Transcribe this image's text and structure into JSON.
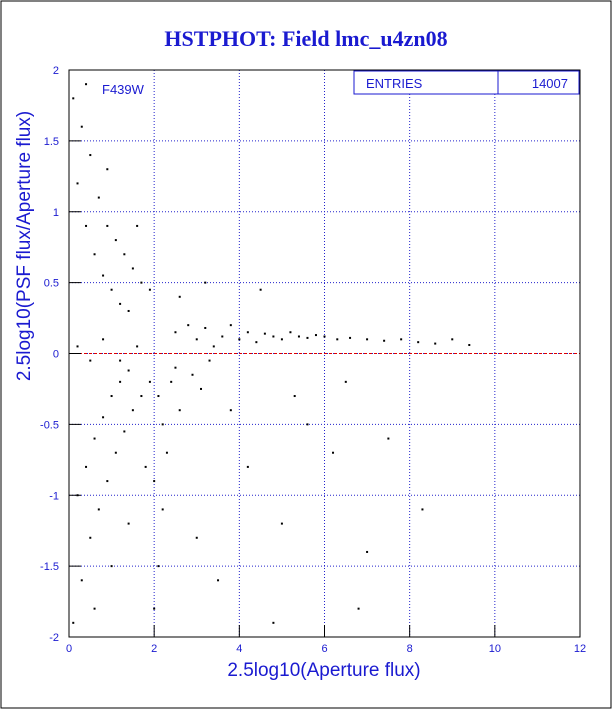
{
  "chart_data": {
    "type": "scatter",
    "title": "HSTPHOT: Field lmc_u4zn08",
    "x_label": "2.5log10(Aperture flux)",
    "y_label": "2.5log10(PSF flux/Aperture flux)",
    "annotation": "F439W",
    "stats": {
      "label": "ENTRIES",
      "value": 14007
    },
    "hline": 0,
    "hline_color": "#e00000",
    "grid": true,
    "grid_color": "#2222cc",
    "xlim": [
      0,
      12
    ],
    "ylim": [
      -2,
      2
    ],
    "xticks": [
      0,
      2,
      4,
      6,
      8,
      10,
      12
    ],
    "yticks": [
      -2,
      -1.5,
      -1,
      -0.5,
      0,
      0.5,
      1,
      1.5,
      2
    ],
    "series": [
      {
        "color": "#000000",
        "x": [
          2.5,
          2.8,
          3.0,
          3.2,
          3.4,
          3.6,
          3.8,
          4.0,
          4.2,
          4.4,
          4.6,
          4.8,
          5.0,
          5.2,
          5.4,
          5.6,
          5.8,
          6.0,
          6.3,
          6.6,
          7.0,
          7.4,
          7.8,
          8.2,
          8.6,
          9.0,
          9.4,
          2.1,
          2.2,
          2.4,
          2.6,
          2.3,
          2.5,
          2.9,
          3.3,
          3.1,
          2.0,
          2.2,
          2.1,
          2.0,
          0.1,
          0.3,
          0.5,
          0.2,
          0.7,
          0.9,
          1.1,
          1.3,
          1.5,
          1.7,
          1.9,
          0.4,
          0.6,
          0.8,
          1.0,
          1.2,
          1.4,
          0.9,
          0.4,
          1.6,
          0.1,
          0.3,
          0.5,
          0.7,
          0.9,
          1.1,
          1.3,
          1.5,
          1.7,
          1.9,
          0.2,
          0.4,
          0.6,
          0.8,
          1.0,
          1.2,
          1.4,
          0.6,
          1.0,
          1.4,
          1.8,
          0.2,
          0.5,
          0.8,
          1.2,
          1.6,
          3.5,
          4.2,
          5.0,
          5.6,
          6.2,
          7.0,
          7.5,
          8.3,
          4.8,
          6.8,
          3.0,
          5.3,
          3.8,
          4.5,
          3.2,
          2.6,
          6.5
        ],
        "values": [
          0.15,
          0.2,
          0.1,
          0.18,
          0.05,
          0.12,
          0.2,
          0.1,
          0.15,
          0.08,
          0.14,
          0.12,
          0.1,
          0.15,
          0.12,
          0.11,
          0.13,
          0.12,
          0.1,
          0.11,
          0.1,
          0.09,
          0.1,
          0.08,
          0.07,
          0.1,
          0.06,
          -0.3,
          -0.5,
          -0.2,
          -0.4,
          -0.7,
          -0.1,
          -0.15,
          -0.05,
          -0.25,
          -0.9,
          -1.1,
          -1.5,
          -1.8,
          1.8,
          1.6,
          1.4,
          1.2,
          1.1,
          0.9,
          0.8,
          0.7,
          0.6,
          0.5,
          0.45,
          0.9,
          0.7,
          0.55,
          0.45,
          0.35,
          0.3,
          1.3,
          1.9,
          0.9,
          -1.9,
          -1.6,
          -1.3,
          -1.1,
          -0.9,
          -0.7,
          -0.55,
          -0.4,
          -0.3,
          -0.2,
          -1.0,
          -0.8,
          -0.6,
          -0.45,
          -0.3,
          -0.2,
          -0.12,
          -1.8,
          -1.5,
          -1.2,
          -0.8,
          0.05,
          -0.05,
          0.1,
          -0.05,
          0.05,
          -1.6,
          -0.8,
          -1.2,
          -0.5,
          -0.7,
          -1.4,
          -0.6,
          -1.1,
          -1.9,
          -1.8,
          -1.3,
          -0.3,
          -0.4,
          0.45,
          0.5,
          0.4,
          -0.2
        ]
      }
    ]
  }
}
